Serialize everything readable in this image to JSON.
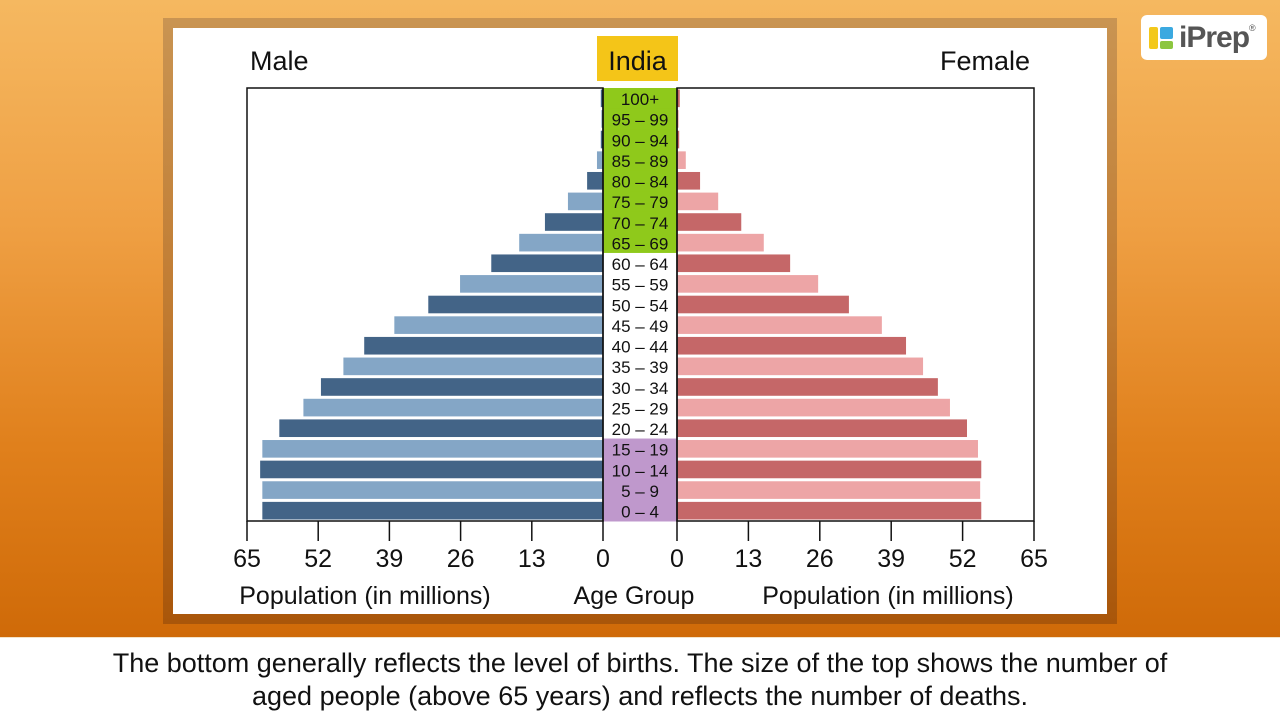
{
  "logo": {
    "text": "iPrep",
    "reg": "®"
  },
  "caption": {
    "line1": "The bottom generally reflects the level of births. The size of the top shows the number of",
    "line2": "aged people (above 65 years) and reflects the number of deaths."
  },
  "colors": {
    "male_dark": "#436487",
    "male_light": "#84a6c6",
    "female_dark": "#c56768",
    "female_light": "#eda5a6",
    "band_old": "#8fc91b",
    "band_young": "#bf98cc",
    "title_bg": "#f4c518"
  },
  "chart_data": {
    "type": "bar",
    "subtype": "population-pyramid",
    "title": "India",
    "left_title": "Male",
    "right_title": "Female",
    "xlabel_left": "Population (in millions)",
    "xlabel_center": "Age Group",
    "xlabel_right": "Population (in millions)",
    "xlim": [
      0,
      65
    ],
    "ticks": [
      0,
      13,
      26,
      39,
      52,
      65
    ],
    "categories": [
      "100+",
      "95 – 99",
      "90 – 94",
      "85 – 89",
      "80 – 84",
      "75 – 79",
      "70 – 74",
      "65 – 69",
      "60 – 64",
      "55 – 59",
      "50 – 54",
      "45 – 49",
      "40 – 44",
      "35 – 39",
      "30 – 34",
      "25 – 29",
      "20 – 24",
      "15 – 19",
      "10 – 14",
      "5 – 9",
      "0 – 4"
    ],
    "band_highlights": {
      "aged": [
        "100+",
        "95 – 99",
        "90 – 94",
        "85 – 89",
        "80 – 84",
        "75 – 79",
        "70 – 74",
        "65 – 69"
      ],
      "young": [
        "15 – 19",
        "10 – 14",
        "5 – 9",
        "0 – 4"
      ]
    },
    "series": [
      {
        "name": "Male",
        "values": [
          0.4,
          0.3,
          0.4,
          1.1,
          2.9,
          6.4,
          10.6,
          15.3,
          20.4,
          26.1,
          31.9,
          38.1,
          43.6,
          47.4,
          51.5,
          54.7,
          59.1,
          62.2,
          62.6,
          62.2,
          62.2
        ]
      },
      {
        "name": "Female",
        "values": [
          0.5,
          0.3,
          0.4,
          1.6,
          4.2,
          7.5,
          11.7,
          15.8,
          20.6,
          25.7,
          31.3,
          37.3,
          41.7,
          44.8,
          47.5,
          49.7,
          52.8,
          54.8,
          55.4,
          55.2,
          55.4
        ]
      }
    ],
    "grid": false,
    "legend": "none"
  }
}
